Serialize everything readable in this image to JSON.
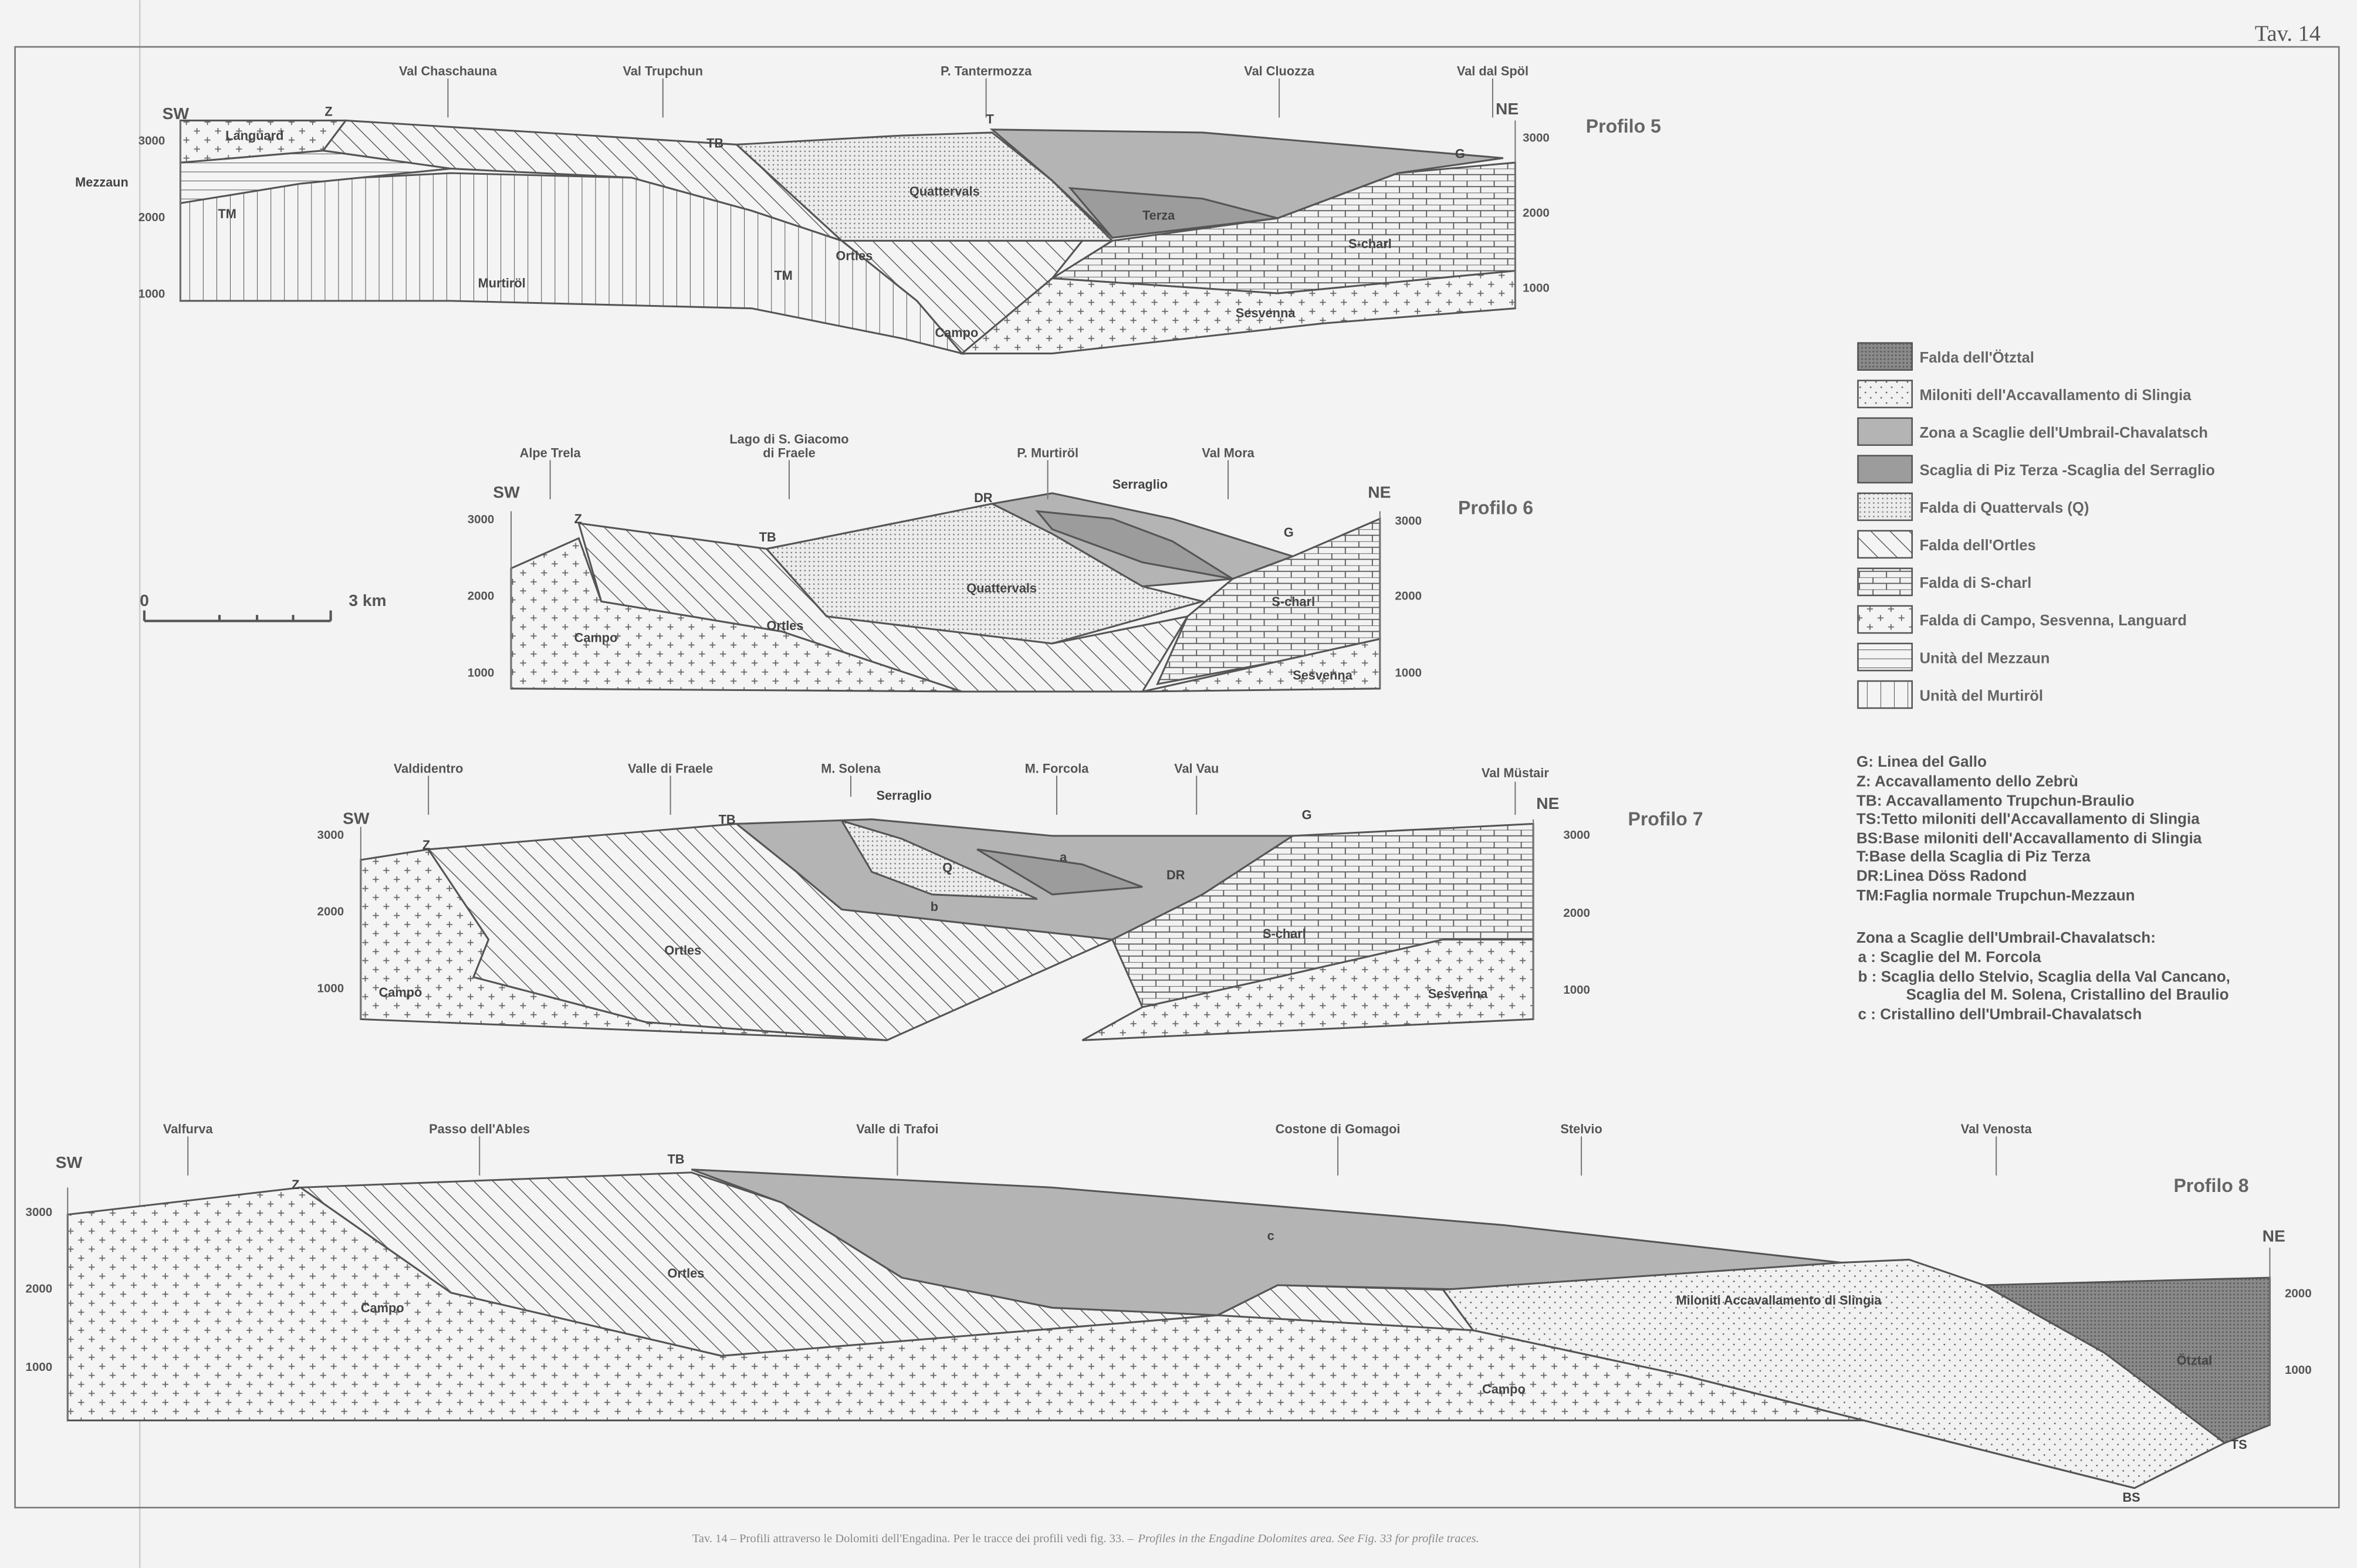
{
  "plate": "Tav. 14",
  "caption": {
    "italian": "Tav. 14 – Profili attraverso le Dolomiti dell'Engadina. Per le tracce dei profili vedi fig. 33. –",
    "english": "Profiles in the Engadine Dolomites area. See Fig. 33 for profile traces."
  },
  "scale_bar": {
    "start": "0",
    "end": "3 km"
  },
  "elevations": {
    "e3000": "3000",
    "e2000": "2000",
    "e1000": "1000"
  },
  "profile5": {
    "title": "Profilo 5",
    "sw": "SW",
    "ne": "NE",
    "places": [
      "Val Chaschauna",
      "Val Trupchun",
      "P. Tantermozza",
      "Val Cluozza",
      "Val dal Spöl"
    ],
    "labels": {
      "z": "Z",
      "t": "T",
      "tb": "TB",
      "g": "G",
      "languard": "Languard",
      "mezzaun": "Mezzaun",
      "tm1": "TM",
      "tm2": "TM",
      "quattervals": "Quattervals",
      "terza": "Terza",
      "ortles": "Ortles",
      "scharl": "S-charl",
      "murtirol": "Murtiröl",
      "campo": "Campo",
      "sesvenna": "Sesvenna"
    }
  },
  "profile6": {
    "title": "Profilo 6",
    "sw": "SW",
    "ne": "NE",
    "places": [
      "Alpe Trela",
      "Lago di S. Giacomo",
      "di Fraele",
      "P. Murtiröl",
      "Val Mora"
    ],
    "labels": {
      "z": "Z",
      "tb": "TB",
      "dr": "DR",
      "serraglio": "Serraglio",
      "g": "G",
      "quattervals": "Quattervals",
      "ortles": "Ortles",
      "scharl": "S-charl",
      "campo": "Campo",
      "sesvenna": "Sesvenna"
    }
  },
  "profile7": {
    "title": "Profilo 7",
    "sw": "SW",
    "ne": "NE",
    "places": [
      "Valdidentro",
      "Valle di Fraele",
      "M. Solena",
      "M. Forcola",
      "Val Vau",
      "Val Müstair"
    ],
    "labels": {
      "z": "Z",
      "tb": "TB",
      "serraglio": "Serraglio",
      "q": "Q",
      "a": "a",
      "b": "b",
      "dr": "DR",
      "g": "G",
      "ortles": "Ortles",
      "scharl": "S-charl",
      "campo": "Campo",
      "sesvenna": "Sesvenna"
    }
  },
  "profile8": {
    "title": "Profilo 8",
    "sw": "SW",
    "ne": "NE",
    "places": [
      "Valfurva",
      "Passo dell'Ables",
      "Valle di Trafoi",
      "Costone di Gomagoi",
      "Stelvio",
      "Val Venosta"
    ],
    "labels": {
      "z": "Z",
      "tb": "TB",
      "ortles": "Ortles",
      "c": "c",
      "campo1": "Campo",
      "campo2": "Campo",
      "miloniti": "Miloniti Accavallamento di Slingia",
      "otztal": "Ötztal",
      "ts": "TS",
      "bs": "BS"
    }
  },
  "legend": [
    {
      "label": "Falda dell'Ötztal",
      "pattern": "dense-dots-dark"
    },
    {
      "label": "Miloniti dell'Accavallamento di Slingia",
      "pattern": "sparse-dots"
    },
    {
      "label": "Zona a Scaglie dell'Umbrail-Chavalatsch",
      "pattern": "solid-light-gray",
      "color": "#b4b4b4"
    },
    {
      "label": "Scaglia di Piz Terza -Scaglia del Serraglio",
      "pattern": "solid-dark-gray",
      "color": "#9c9c9c"
    },
    {
      "label": "Falda di Quattervals (Q)",
      "pattern": "fine-dots"
    },
    {
      "label": "Falda dell'Ortles",
      "pattern": "diagonal-hatch"
    },
    {
      "label": "Falda di S-charl",
      "pattern": "brick"
    },
    {
      "label": "Falda di Campo, Sesvenna, Languard",
      "pattern": "crosses"
    },
    {
      "label": "Unità del Mezzaun",
      "pattern": "horizontal-lines"
    },
    {
      "label": "Unità del Murtiröl",
      "pattern": "vertical-lines"
    }
  ],
  "abbreviations": [
    "G: Linea del Gallo",
    "Z: Accavallamento dello Zebrù",
    "TB: Accavallamento Trupchun-Braulio",
    "TS:Tetto miloniti dell'Accavallamento di Slingia",
    "BS:Base miloniti dell'Accavallamento di Slingia",
    "T:Base della Scaglia di Piz Terza",
    "DR:Linea Döss Radond",
    "TM:Faglia normale Trupchun-Mezzaun"
  ],
  "zona_notes": {
    "heading": "Zona a Scaglie dell'Umbrail-Chavalatsch:",
    "items": [
      "a : Scaglie del M. Forcola",
      "b : Scaglia dello Stelvio, Scaglia della Val Cancano,",
      "Scaglia del M. Solena, Cristallino del Braulio",
      "c : Cristallino dell'Umbrail-Chavalatsch"
    ]
  }
}
